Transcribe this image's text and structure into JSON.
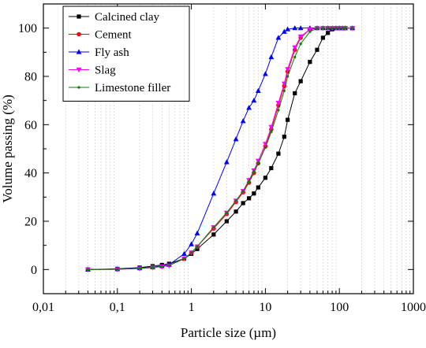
{
  "chart_data": {
    "type": "line",
    "xlabel": "Particle size (µm)",
    "ylabel": "Volume passing (%)",
    "xscale": "log",
    "xlim": [
      0.01,
      1000
    ],
    "ylim": [
      -10,
      110
    ],
    "xticks": [
      0.01,
      0.1,
      1,
      10,
      100,
      1000
    ],
    "xtick_labels": [
      "0,01",
      "0,1",
      "1",
      "10",
      "100",
      "1000"
    ],
    "yticks": [
      0,
      20,
      40,
      60,
      80,
      100
    ],
    "ytick_labels": [
      "0",
      "20",
      "40",
      "60",
      "80",
      "100"
    ],
    "grid": "minor vertical dotted",
    "legend_position": "top-left",
    "series": [
      {
        "name": "Calcined clay",
        "color": "#000000",
        "marker": "square",
        "x": [
          0.04,
          0.1,
          0.2,
          0.3,
          0.4,
          0.5,
          0.8,
          1,
          1.2,
          2,
          3,
          4,
          5,
          6,
          7,
          8,
          10,
          12,
          15,
          18,
          20,
          25,
          30,
          40,
          50,
          60,
          70,
          80,
          90,
          100,
          110,
          120,
          150
        ],
        "y": [
          0,
          0.3,
          0.8,
          1.4,
          1.9,
          2.4,
          4.5,
          6.5,
          8.5,
          14.5,
          20,
          24,
          27.5,
          29.5,
          31.5,
          34,
          38,
          42,
          48,
          55,
          62,
          73,
          78,
          86,
          91,
          96,
          98,
          99.5,
          100,
          100,
          100,
          100,
          100
        ]
      },
      {
        "name": "Cement",
        "color": "#ff0000",
        "marker": "circle",
        "x": [
          0.04,
          0.1,
          0.2,
          0.3,
          0.4,
          0.5,
          0.8,
          1,
          1.2,
          2,
          3,
          4,
          5,
          6,
          7,
          8,
          10,
          12,
          15,
          18,
          20,
          25,
          30,
          40,
          50,
          60,
          70,
          80,
          90,
          100,
          110,
          120,
          150
        ],
        "y": [
          0,
          0.1,
          0.5,
          0.9,
          1.3,
          1.8,
          4.5,
          7,
          9.5,
          17,
          23,
          28,
          32,
          36,
          40,
          44,
          51,
          58,
          68,
          76,
          82,
          91,
          96,
          99.5,
          100,
          100,
          100,
          100,
          100,
          100,
          100,
          100,
          100
        ]
      },
      {
        "name": "Fly ash",
        "color": "#0000ff",
        "marker": "triangle",
        "x": [
          0.04,
          0.1,
          0.2,
          0.3,
          0.4,
          0.5,
          0.8,
          1,
          1.2,
          2,
          3,
          4,
          5,
          6,
          7,
          8,
          10,
          12,
          15,
          18,
          20,
          25,
          30,
          40,
          50,
          60,
          70,
          80,
          90,
          100,
          110,
          120,
          150
        ],
        "y": [
          0,
          0.2,
          0.6,
          1.0,
          1.5,
          2.0,
          6.5,
          10.5,
          15,
          31.5,
          44.5,
          54,
          61.5,
          67,
          70,
          74,
          81,
          88,
          96,
          98.5,
          99.5,
          100,
          100,
          100,
          100,
          100,
          100,
          100,
          100,
          100,
          100,
          100,
          100
        ]
      },
      {
        "name": "Slag",
        "color": "#ff00ff",
        "marker": "triangle-down",
        "x": [
          0.04,
          0.1,
          0.2,
          0.3,
          0.4,
          0.5,
          0.8,
          1,
          1.2,
          2,
          3,
          4,
          5,
          6,
          7,
          8,
          10,
          12,
          15,
          18,
          20,
          25,
          30,
          40,
          50,
          60,
          70,
          80,
          90,
          100,
          110,
          120,
          150
        ],
        "y": [
          0,
          0.1,
          0.4,
          0.8,
          1.2,
          1.6,
          4.5,
          7,
          9.5,
          17.5,
          23.5,
          28.5,
          32.5,
          37,
          41,
          45,
          52,
          59,
          69,
          77,
          83,
          92,
          96.5,
          99.5,
          100,
          100,
          100,
          100,
          100,
          100,
          100,
          100,
          100
        ]
      },
      {
        "name": "Limestone filler",
        "color": "#008000",
        "marker": "dot",
        "x": [
          0.04,
          0.1,
          0.2,
          0.3,
          0.4,
          0.5,
          0.8,
          1,
          1.2,
          2,
          3,
          4,
          5,
          6,
          7,
          8,
          10,
          12,
          15,
          18,
          20,
          25,
          30,
          40,
          50,
          60,
          70,
          80,
          90,
          100,
          110,
          120,
          150
        ],
        "y": [
          0,
          0.1,
          0.5,
          0.9,
          1.3,
          1.8,
          4.5,
          7,
          9.5,
          17.5,
          23.5,
          28.5,
          32.5,
          36.5,
          40.5,
          44,
          50.5,
          57,
          66,
          74,
          80,
          88,
          93.5,
          98.5,
          100,
          100,
          100,
          100,
          100,
          100,
          100,
          100,
          100
        ]
      }
    ]
  }
}
